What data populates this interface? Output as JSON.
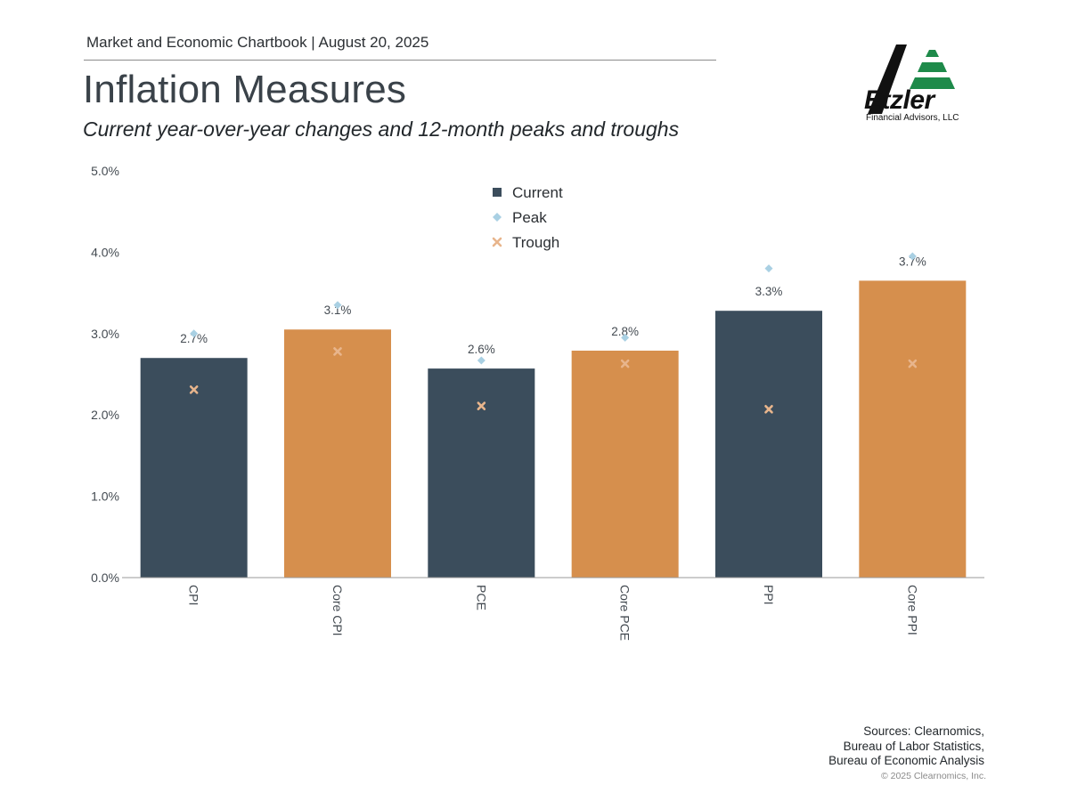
{
  "header": {
    "chartbook_line": "Market and Economic Chartbook | August 20, 2025",
    "title": "Inflation Measures",
    "subtitle": "Current year-over-year changes and 12-month peaks and troughs"
  },
  "logo": {
    "name": "Etzler",
    "tagline": "Financial Advisors, LLC"
  },
  "footer": {
    "sources": [
      "Sources: Clearnomics,",
      "Bureau of Labor Statistics,",
      "Bureau of Economic Analysis"
    ],
    "copyright": "© 2025 Clearnomics, Inc."
  },
  "colors": {
    "current_dark": "#3b4d5c",
    "current_orange": "#d68f4d",
    "peak": "#a9d0e3",
    "trough": "#e8b58c",
    "axis": "#999999",
    "text": "#444b52"
  },
  "chart_data": {
    "type": "bar",
    "title": "Inflation Measures",
    "xlabel": "",
    "ylabel": "",
    "ylim": [
      0,
      5
    ],
    "yticks": [
      0,
      1,
      2,
      3,
      4,
      5
    ],
    "ytick_labels": [
      "0.0%",
      "1.0%",
      "2.0%",
      "3.0%",
      "4.0%",
      "5.0%"
    ],
    "legend_position": "top-center",
    "categories": [
      "CPI",
      "Core CPI",
      "PCE",
      "Core PCE",
      "PPI",
      "Core PPI"
    ],
    "series": [
      {
        "name": "Current",
        "marker": "bar",
        "values": [
          2.7,
          3.05,
          2.57,
          2.79,
          3.28,
          3.65
        ],
        "labels": [
          "2.7%",
          "3.1%",
          "2.6%",
          "2.8%",
          "3.3%",
          "3.7%"
        ]
      },
      {
        "name": "Peak",
        "marker": "diamond",
        "values": [
          3.0,
          3.35,
          2.67,
          2.95,
          3.8,
          3.95
        ]
      },
      {
        "name": "Trough",
        "marker": "x",
        "values": [
          2.31,
          2.78,
          2.11,
          2.63,
          2.07,
          2.63
        ]
      }
    ]
  }
}
